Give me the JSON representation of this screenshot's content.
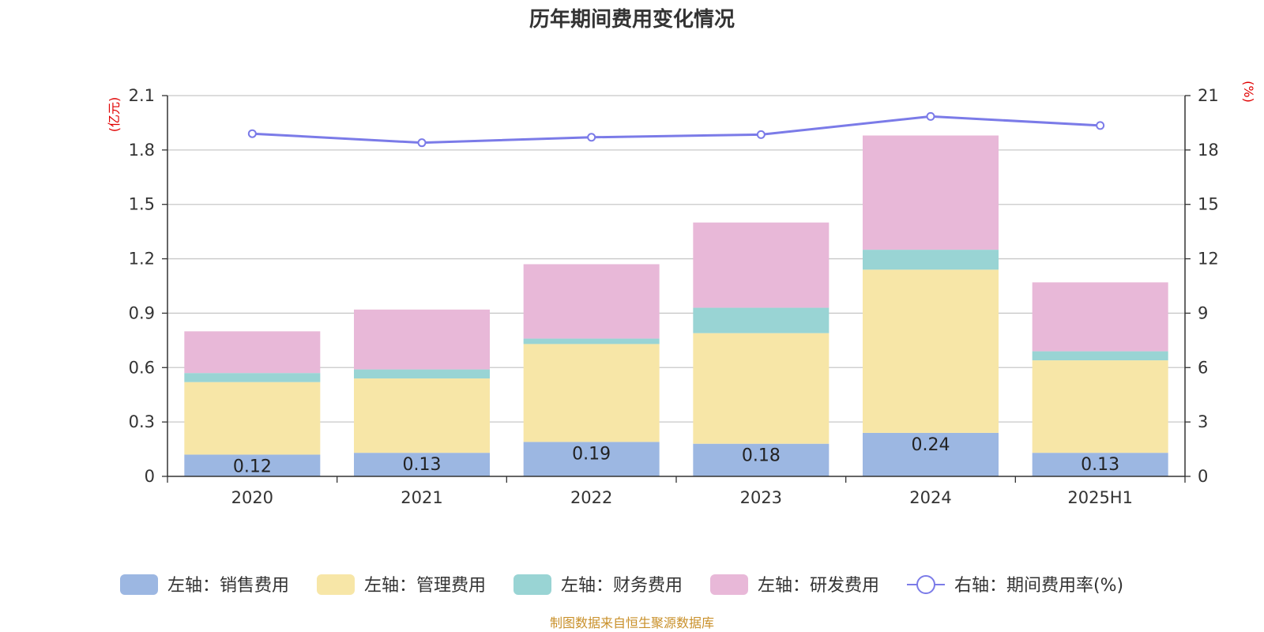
{
  "chart_data": {
    "type": "bar",
    "title": "历年期间费用变化情况",
    "categories": [
      "2020",
      "2021",
      "2022",
      "2023",
      "2024",
      "2025H1"
    ],
    "left_axis": {
      "unit": "(亿元)",
      "ylim": [
        0,
        2.1
      ],
      "ticks": [
        "0",
        "0.3",
        "0.6",
        "0.9",
        "1.2",
        "1.5",
        "1.8",
        "2.1"
      ]
    },
    "right_axis": {
      "unit": "(%)",
      "ylim": [
        0,
        21
      ],
      "ticks": [
        "0",
        "3",
        "6",
        "9",
        "12",
        "15",
        "18",
        "21"
      ]
    },
    "stacked": true,
    "series": [
      {
        "name": "左轴：销售费用",
        "color": "#9cb7e2",
        "values": [
          0.12,
          0.13,
          0.19,
          0.18,
          0.24,
          0.13
        ],
        "labels": [
          "0.12",
          "0.13",
          "0.19",
          "0.18",
          "0.24",
          "0.13"
        ]
      },
      {
        "name": "左轴：管理费用",
        "color": "#f7e6a7",
        "values": [
          0.4,
          0.41,
          0.54,
          0.61,
          0.9,
          0.51
        ]
      },
      {
        "name": "左轴：财务费用",
        "color": "#99d4d4",
        "values": [
          0.05,
          0.05,
          0.03,
          0.14,
          0.11,
          0.05
        ]
      },
      {
        "name": "左轴：研发费用",
        "color": "#e8b8d8",
        "values": [
          0.23,
          0.33,
          0.41,
          0.47,
          0.63,
          0.38
        ]
      }
    ],
    "line_series": {
      "name": "右轴：期间费用率(%)",
      "color": "#7b7be8",
      "values": [
        18.9,
        18.4,
        18.7,
        18.85,
        19.85,
        19.35
      ]
    },
    "grid": true,
    "legend_position": "bottom"
  },
  "source_note": "制图数据来自恒生聚源数据库"
}
